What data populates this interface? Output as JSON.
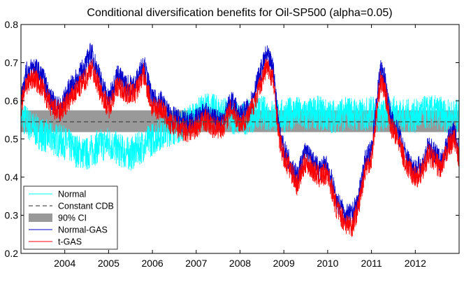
{
  "chart_data": {
    "type": "line",
    "title": "Conditional diversification benefits for Oil-SP500 (alpha=0.05)",
    "xlabel": "",
    "ylabel": "",
    "xlim": [
      2003.0,
      2013.0
    ],
    "ylim": [
      0.2,
      0.8
    ],
    "x_ticks": [
      2004,
      2005,
      2006,
      2007,
      2008,
      2009,
      2010,
      2011,
      2012
    ],
    "x_tick_labels": [
      "2004",
      "2005",
      "2006",
      "2007",
      "2008",
      "2009",
      "2010",
      "2011",
      "2012"
    ],
    "y_ticks": [
      0.2,
      0.3,
      0.4,
      0.5,
      0.6,
      0.7,
      0.8
    ],
    "y_tick_labels": [
      "0.2",
      "0.3",
      "0.4",
      "0.5",
      "0.6",
      "0.7",
      "0.8"
    ],
    "legend": {
      "position": "bottom-left",
      "entries": [
        {
          "label": "Normal",
          "style": "line",
          "color": "#00ffff"
        },
        {
          "label": "Constant CDB",
          "style": "dashed",
          "color": "#555555"
        },
        {
          "label": "90% CI",
          "style": "patch",
          "color": "#999999"
        },
        {
          "label": "Normal-GAS",
          "style": "line",
          "color": "#0000cc"
        },
        {
          "label": "t-GAS",
          "style": "line",
          "color": "#ff0000"
        }
      ]
    },
    "constant_cdb": 0.545,
    "ci_90": [
      0.518,
      0.575
    ],
    "series": [
      {
        "name": "Normal",
        "color": "#00ffff",
        "x": [
          2003.0,
          2003.25,
          2003.5,
          2003.75,
          2004.0,
          2004.25,
          2004.5,
          2004.75,
          2005.0,
          2005.25,
          2005.5,
          2005.75,
          2006.0,
          2006.25,
          2006.5,
          2006.75,
          2007.0,
          2007.25,
          2007.5,
          2007.75,
          2008.0,
          2008.25,
          2008.5,
          2008.75,
          2009.0,
          2009.25,
          2009.5,
          2009.75,
          2010.0,
          2010.25,
          2010.5,
          2010.75,
          2011.0,
          2011.25,
          2011.5,
          2011.75,
          2012.0,
          2012.25,
          2012.5,
          2012.75,
          2013.0
        ],
        "y": [
          0.56,
          0.53,
          0.51,
          0.5,
          0.49,
          0.47,
          0.46,
          0.48,
          0.49,
          0.47,
          0.46,
          0.48,
          0.5,
          0.52,
          0.53,
          0.54,
          0.56,
          0.58,
          0.57,
          0.56,
          0.55,
          0.56,
          0.57,
          0.56,
          0.56,
          0.57,
          0.56,
          0.57,
          0.56,
          0.56,
          0.57,
          0.56,
          0.57,
          0.56,
          0.57,
          0.56,
          0.56,
          0.57,
          0.57,
          0.56,
          0.56
        ]
      },
      {
        "name": "Normal-GAS",
        "color": "#0000cc",
        "x": [
          2003.0,
          2003.1,
          2003.3,
          2003.5,
          2003.7,
          2003.9,
          2004.1,
          2004.3,
          2004.5,
          2004.6,
          2004.8,
          2005.0,
          2005.2,
          2005.4,
          2005.6,
          2005.8,
          2006.0,
          2006.2,
          2006.4,
          2006.6,
          2006.8,
          2007.0,
          2007.2,
          2007.4,
          2007.6,
          2007.8,
          2008.0,
          2008.2,
          2008.4,
          2008.6,
          2008.75,
          2008.9,
          2009.0,
          2009.15,
          2009.3,
          2009.5,
          2009.65,
          2009.8,
          2010.0,
          2010.2,
          2010.4,
          2010.55,
          2010.7,
          2010.85,
          2011.0,
          2011.1,
          2011.2,
          2011.3,
          2011.45,
          2011.6,
          2011.8,
          2012.0,
          2012.15,
          2012.3,
          2012.45,
          2012.6,
          2012.75,
          2012.9,
          2013.0
        ],
        "y": [
          0.6,
          0.67,
          0.69,
          0.66,
          0.6,
          0.58,
          0.63,
          0.66,
          0.7,
          0.73,
          0.66,
          0.6,
          0.67,
          0.64,
          0.64,
          0.7,
          0.6,
          0.6,
          0.56,
          0.55,
          0.54,
          0.55,
          0.57,
          0.55,
          0.55,
          0.6,
          0.56,
          0.58,
          0.65,
          0.72,
          0.69,
          0.52,
          0.47,
          0.44,
          0.4,
          0.47,
          0.44,
          0.42,
          0.43,
          0.34,
          0.3,
          0.3,
          0.34,
          0.44,
          0.47,
          0.58,
          0.68,
          0.66,
          0.55,
          0.52,
          0.45,
          0.42,
          0.43,
          0.48,
          0.46,
          0.44,
          0.5,
          0.52,
          0.46
        ]
      },
      {
        "name": "t-GAS",
        "color": "#ff0000",
        "x": [
          2003.0,
          2003.1,
          2003.3,
          2003.5,
          2003.7,
          2003.9,
          2004.1,
          2004.3,
          2004.5,
          2004.6,
          2004.8,
          2005.0,
          2005.2,
          2005.4,
          2005.6,
          2005.8,
          2006.0,
          2006.2,
          2006.4,
          2006.6,
          2006.8,
          2007.0,
          2007.2,
          2007.4,
          2007.6,
          2007.8,
          2008.0,
          2008.2,
          2008.4,
          2008.6,
          2008.75,
          2008.9,
          2009.0,
          2009.15,
          2009.3,
          2009.5,
          2009.65,
          2009.8,
          2010.0,
          2010.2,
          2010.4,
          2010.55,
          2010.7,
          2010.85,
          2011.0,
          2011.1,
          2011.2,
          2011.3,
          2011.45,
          2011.6,
          2011.8,
          2012.0,
          2012.15,
          2012.3,
          2012.45,
          2012.6,
          2012.75,
          2012.9,
          2013.0
        ],
        "y": [
          0.58,
          0.64,
          0.66,
          0.63,
          0.58,
          0.57,
          0.6,
          0.63,
          0.66,
          0.69,
          0.63,
          0.58,
          0.64,
          0.62,
          0.62,
          0.67,
          0.58,
          0.58,
          0.54,
          0.53,
          0.52,
          0.53,
          0.55,
          0.53,
          0.53,
          0.58,
          0.54,
          0.56,
          0.62,
          0.69,
          0.66,
          0.5,
          0.45,
          0.42,
          0.38,
          0.44,
          0.42,
          0.4,
          0.41,
          0.32,
          0.28,
          0.27,
          0.32,
          0.42,
          0.45,
          0.55,
          0.65,
          0.63,
          0.53,
          0.5,
          0.43,
          0.4,
          0.41,
          0.46,
          0.44,
          0.42,
          0.48,
          0.5,
          0.44
        ]
      }
    ]
  }
}
